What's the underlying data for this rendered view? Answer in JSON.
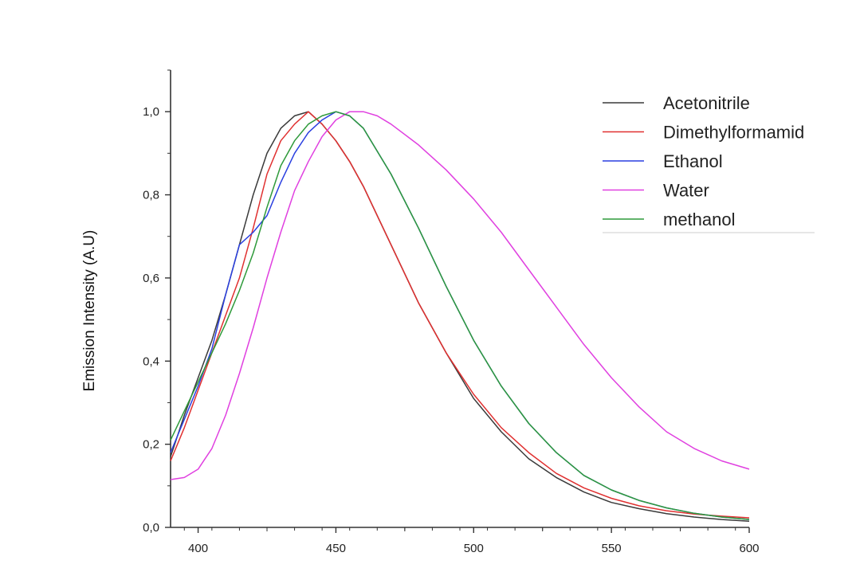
{
  "chart_data": {
    "type": "line",
    "title": "",
    "xlabel": "",
    "ylabel": "Emission Intensity (A.U)",
    "xlim": [
      390,
      600
    ],
    "ylim": [
      0.0,
      1.1
    ],
    "x_ticks": [
      400,
      450,
      500,
      550,
      600
    ],
    "y_ticks": [
      0.0,
      0.2,
      0.4,
      0.6,
      0.8,
      1.0
    ],
    "x_tick_labels": [
      "400",
      "450",
      "500",
      "550",
      "600"
    ],
    "y_tick_labels": [
      "0,0",
      "0,2",
      "0,4",
      "0,6",
      "0,8",
      "1,0"
    ],
    "grid": false,
    "legend_position": "top-right",
    "series": [
      {
        "name": "Acetonitrile",
        "color": "#3a3a3a",
        "x": [
          390,
          395,
          400,
          405,
          410,
          415,
          420,
          425,
          430,
          435,
          440,
          445,
          450,
          455,
          460,
          470,
          480,
          490,
          500,
          510,
          520,
          530,
          540,
          550,
          560,
          570,
          580,
          590,
          600
        ],
        "y": [
          0.17,
          0.27,
          0.36,
          0.45,
          0.56,
          0.68,
          0.8,
          0.9,
          0.96,
          0.99,
          1.0,
          0.97,
          0.93,
          0.88,
          0.82,
          0.68,
          0.54,
          0.42,
          0.31,
          0.23,
          0.165,
          0.12,
          0.085,
          0.06,
          0.045,
          0.033,
          0.025,
          0.019,
          0.015
        ]
      },
      {
        "name": "Dimethylformamid",
        "color": "#e03030",
        "x": [
          390,
          395,
          400,
          405,
          410,
          415,
          420,
          425,
          430,
          435,
          440,
          445,
          450,
          455,
          460,
          470,
          480,
          490,
          500,
          510,
          520,
          530,
          540,
          550,
          560,
          570,
          580,
          590,
          600
        ],
        "y": [
          0.16,
          0.24,
          0.33,
          0.42,
          0.51,
          0.6,
          0.72,
          0.85,
          0.93,
          0.97,
          1.0,
          0.97,
          0.93,
          0.88,
          0.82,
          0.68,
          0.54,
          0.42,
          0.32,
          0.24,
          0.18,
          0.13,
          0.095,
          0.07,
          0.052,
          0.04,
          0.032,
          0.027,
          0.023
        ]
      },
      {
        "name": "Ethanol",
        "color": "#2a3fe0",
        "x": [
          390,
          395,
          400,
          405,
          410,
          415,
          420,
          425,
          430,
          435,
          440,
          445,
          450,
          455,
          460,
          470,
          480,
          490,
          500,
          510,
          520,
          530,
          540,
          550,
          560,
          570,
          580,
          590,
          600
        ],
        "y": [
          0.18,
          0.26,
          0.34,
          0.43,
          0.56,
          0.68,
          0.71,
          0.75,
          0.83,
          0.9,
          0.95,
          0.98,
          1.0,
          0.99,
          0.96,
          0.85,
          0.72,
          0.58,
          0.45,
          0.34,
          0.25,
          0.18,
          0.125,
          0.09,
          0.065,
          0.047,
          0.034,
          0.025,
          0.019
        ]
      },
      {
        "name": "Water",
        "color": "#e040e0",
        "x": [
          390,
          395,
          400,
          405,
          410,
          415,
          420,
          425,
          430,
          435,
          440,
          445,
          450,
          455,
          460,
          465,
          470,
          480,
          490,
          500,
          510,
          520,
          530,
          540,
          550,
          560,
          570,
          580,
          590,
          600
        ],
        "y": [
          0.115,
          0.12,
          0.14,
          0.19,
          0.27,
          0.37,
          0.48,
          0.6,
          0.71,
          0.81,
          0.88,
          0.94,
          0.98,
          1.0,
          1.0,
          0.99,
          0.97,
          0.92,
          0.86,
          0.79,
          0.71,
          0.62,
          0.53,
          0.44,
          0.36,
          0.29,
          0.23,
          0.19,
          0.16,
          0.14
        ]
      },
      {
        "name": "methanol",
        "color": "#2e9a3a",
        "x": [
          390,
          395,
          400,
          405,
          410,
          415,
          420,
          425,
          430,
          435,
          440,
          445,
          450,
          455,
          460,
          470,
          480,
          490,
          500,
          510,
          520,
          530,
          540,
          550,
          560,
          570,
          580,
          590,
          600
        ],
        "y": [
          0.21,
          0.28,
          0.35,
          0.42,
          0.49,
          0.57,
          0.66,
          0.77,
          0.87,
          0.93,
          0.97,
          0.99,
          1.0,
          0.99,
          0.96,
          0.85,
          0.72,
          0.58,
          0.45,
          0.34,
          0.25,
          0.18,
          0.125,
          0.09,
          0.065,
          0.047,
          0.034,
          0.025,
          0.019
        ]
      }
    ]
  }
}
